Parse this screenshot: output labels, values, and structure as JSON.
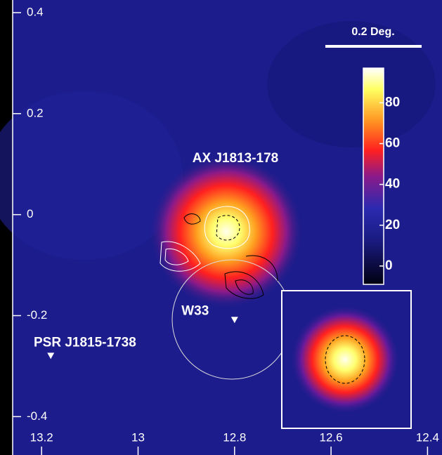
{
  "chart_data": {
    "type": "sky-map",
    "xlim": [
      13.26,
      12.37
    ],
    "xticks": [
      13.2,
      13,
      12.8,
      12.6,
      12.4
    ],
    "ylim": [
      -0.476,
      0.425
    ],
    "yticks": [
      -0.4,
      -0.2,
      0,
      0.2,
      0.4
    ],
    "colorbar_lim": [
      -9,
      97
    ],
    "colorbar_ticks": [
      0,
      20,
      40,
      60,
      80
    ],
    "scale_label": "0.2 Deg.",
    "source_label": "AX J1813-178",
    "sources": [
      {
        "name": "W33",
        "l": 12.8,
        "b": -0.208
      },
      {
        "name": "PSR J1815-1738",
        "l": 13.181,
        "b": -0.279
      }
    ]
  }
}
